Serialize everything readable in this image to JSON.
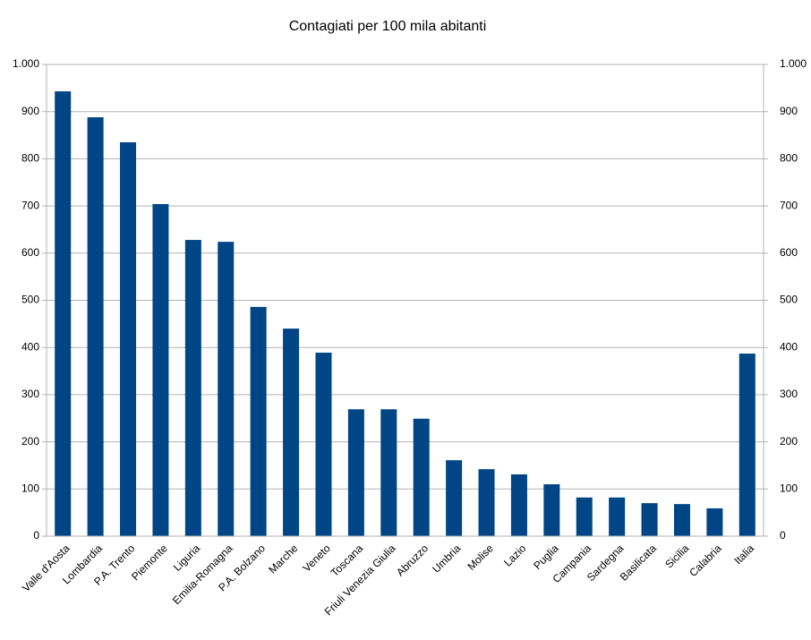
{
  "chart_data": {
    "type": "bar",
    "title": "Contagiati per 100 mila abitanti",
    "categories": [
      "Valle d'Aosta",
      "Lombardia",
      "P.A. Trento",
      "Piemonte",
      "Liguria",
      "Emilia-Romagna",
      "P.A. Bolzano",
      "Marche",
      "Veneto",
      "Toscana",
      "Friuli Venezia Giulia",
      "Abruzzo",
      "Umbria",
      "Molise",
      "Lazio",
      "Puglia",
      "Campania",
      "Sardegna",
      "Basilicata",
      "Sicilia",
      "Calabria",
      "Italia"
    ],
    "values": [
      943,
      888,
      835,
      704,
      628,
      624,
      486,
      440,
      389,
      269,
      269,
      249,
      161,
      142,
      131,
      110,
      82,
      82,
      70,
      68,
      59,
      387
    ],
    "color": "#004586",
    "ylim": [
      0,
      1000
    ],
    "yticks": [
      0,
      100,
      200,
      300,
      400,
      500,
      600,
      700,
      800,
      900,
      {
        "value": 1000,
        "label": "1.000"
      }
    ],
    "y2lim": [
      0,
      1000
    ],
    "y2ticks": [
      0,
      100,
      200,
      300,
      400,
      500,
      600,
      700,
      800,
      900,
      {
        "value": 1000,
        "label": "1.000"
      }
    ],
    "grid": true
  }
}
